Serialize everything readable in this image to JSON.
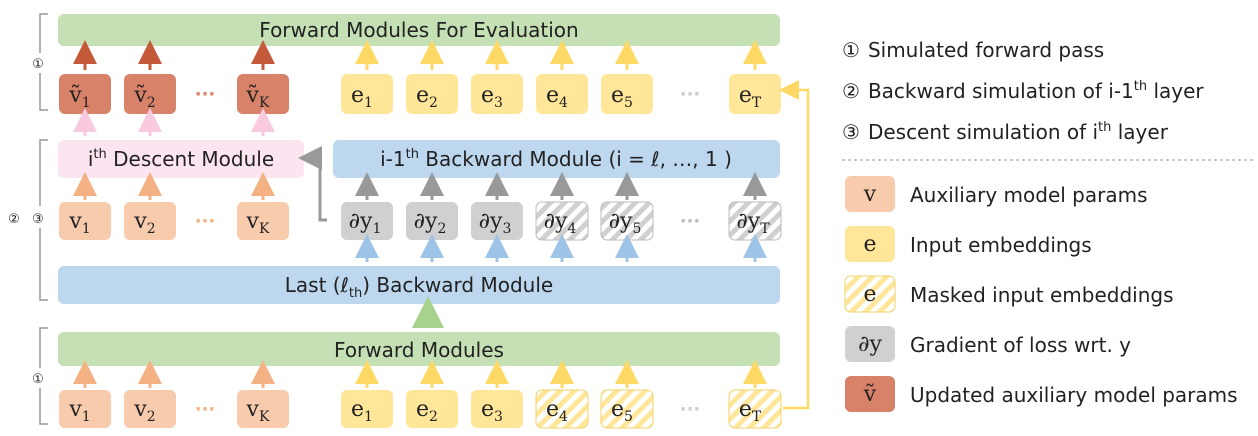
{
  "colors": {
    "forward_bar": "#c5e0b4",
    "backward_bar": "#bdd7ee",
    "descent_box": "#fce4f0",
    "aux_param": "#f8cbad",
    "embedding": "#ffe699",
    "gradient": "#d0d0d0",
    "updated_param": "#d9826a",
    "arrow_orange": "#f4b183",
    "arrow_yellow": "#ffd966",
    "arrow_gray": "#999999",
    "arrow_blue": "#9dc3e6",
    "arrow_pink": "#f9c9e0",
    "arrow_red": "#c55a3a",
    "arrow_green": "#a9d18e"
  },
  "top_section": {
    "marker": "①",
    "bar_label": "Forward Modules For Evaluation",
    "updated_params": [
      {
        "base": "ṽ",
        "sub": "1"
      },
      {
        "base": "ṽ",
        "sub": "2"
      },
      {
        "base": "ṽ",
        "sub": "K"
      }
    ],
    "embeddings": [
      {
        "base": "e",
        "sub": "1"
      },
      {
        "base": "e",
        "sub": "2"
      },
      {
        "base": "e",
        "sub": "3"
      },
      {
        "base": "e",
        "sub": "4"
      },
      {
        "base": "e",
        "sub": "5"
      },
      {
        "base": "e",
        "sub": "T"
      }
    ],
    "ellipsis": "···"
  },
  "middle_section": {
    "markers": [
      "②",
      "③"
    ],
    "descent_label_sup": "th",
    "descent_label_pre": "i",
    "descent_label_post": " Descent Module",
    "backward_label_pre": "i-1",
    "backward_label_sup": "th",
    "backward_label_post": " Backward Module (i = ℓ, …, 1 )",
    "last_backward_pre": "Last (ℓ",
    "last_backward_sub": "th",
    "last_backward_post": ") Backward Module",
    "params": [
      {
        "base": "v",
        "sub": "1"
      },
      {
        "base": "v",
        "sub": "2"
      },
      {
        "base": "v",
        "sub": "K"
      }
    ],
    "gradients": [
      {
        "base": "∂y",
        "sub": "1",
        "masked": false
      },
      {
        "base": "∂y",
        "sub": "2",
        "masked": false
      },
      {
        "base": "∂y",
        "sub": "3",
        "masked": false
      },
      {
        "base": "∂y",
        "sub": "4",
        "masked": true
      },
      {
        "base": "∂y",
        "sub": "5",
        "masked": true
      },
      {
        "base": "∂y",
        "sub": "T",
        "masked": true
      }
    ],
    "ellipsis": "···"
  },
  "bottom_section": {
    "marker": "①",
    "bar_label": "Forward Modules",
    "params": [
      {
        "base": "v",
        "sub": "1"
      },
      {
        "base": "v",
        "sub": "2"
      },
      {
        "base": "v",
        "sub": "K"
      }
    ],
    "embeddings": [
      {
        "base": "e",
        "sub": "1",
        "masked": false
      },
      {
        "base": "e",
        "sub": "2",
        "masked": false
      },
      {
        "base": "e",
        "sub": "3",
        "masked": false
      },
      {
        "base": "e",
        "sub": "4",
        "masked": true
      },
      {
        "base": "e",
        "sub": "5",
        "masked": true
      },
      {
        "base": "e",
        "sub": "T",
        "masked": true
      }
    ],
    "ellipsis": "···"
  },
  "legend": {
    "steps": [
      {
        "marker": "①",
        "text": "Simulated forward pass"
      },
      {
        "marker": "②",
        "text_pre": "Backward simulation of i-1",
        "sup": "th",
        "text_post": " layer"
      },
      {
        "marker": "③",
        "text_pre": "Descent simulation of i",
        "sup": "th",
        "text_post": " layer"
      }
    ],
    "items": [
      {
        "symbol": "v",
        "label": "Auxiliary model params"
      },
      {
        "symbol": "e",
        "label": "Input embeddings"
      },
      {
        "symbol": "e",
        "label": "Masked input embeddings"
      },
      {
        "symbol": "∂y",
        "label": "Gradient of loss wrt. y"
      },
      {
        "symbol": "ṽ",
        "label": "Updated auxiliary model params"
      }
    ]
  }
}
